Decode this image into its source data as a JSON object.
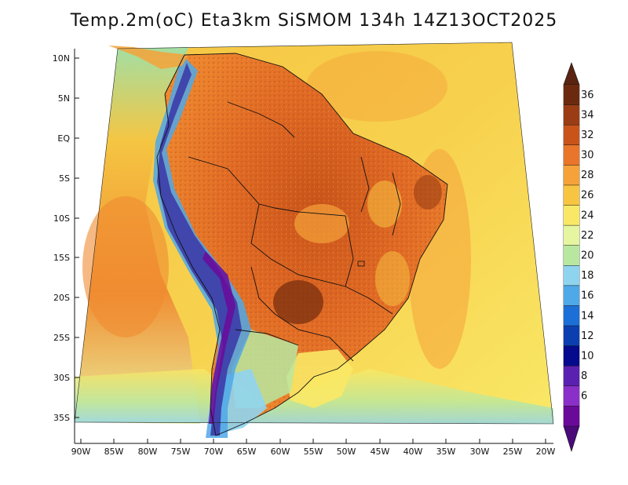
{
  "title": "Temp.2m(oC) Eta3km SiSMOM 134h 14Z13OCT2025",
  "lat_labels": [
    "10N",
    "5N",
    "EQ",
    "5S",
    "10S",
    "15S",
    "20S",
    "25S",
    "30S",
    "35S"
  ],
  "lon_labels": [
    "90W",
    "85W",
    "80W",
    "75W",
    "70W",
    "65W",
    "60W",
    "55W",
    "50W",
    "45W",
    "40W",
    "35W",
    "30W",
    "25W",
    "20W"
  ],
  "colorbar": {
    "labels": [
      "36",
      "34",
      "32",
      "30",
      "28",
      "26",
      "24",
      "22",
      "20",
      "18",
      "16",
      "14",
      "12",
      "10",
      "8",
      "6"
    ],
    "colors": [
      "#6b2a10",
      "#9a3d14",
      "#c9541a",
      "#e8752a",
      "#f5a23a",
      "#f7c542",
      "#f9e866",
      "#e6f5a0",
      "#b8e8a0",
      "#8fd4ef",
      "#4fa8e8",
      "#1b6fd6",
      "#0b3fb0",
      "#060a8c",
      "#5a20b0",
      "#8a2fc8",
      "#6a0a9a"
    ]
  },
  "legend_colors": {
    "ocean_warm": "#f5c542",
    "ocean_mild": "#f9e866",
    "land_hot": "#e8752a",
    "land_very_hot": "#b9471a",
    "andes_cold": "#3c3ca8",
    "south_cool": "#8fd4ef"
  }
}
